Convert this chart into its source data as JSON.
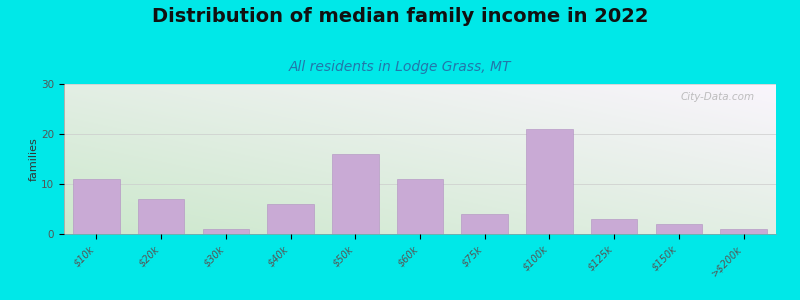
{
  "title": "Distribution of median family income in 2022",
  "subtitle": "All residents in Lodge Grass, MT",
  "ylabel": "families",
  "categories": [
    "$10k",
    "$20k",
    "$30k",
    "$40k",
    "$50k",
    "$60k",
    "$75k",
    "$100k",
    "$125k",
    "$150k",
    ">$200k"
  ],
  "values": [
    11,
    7,
    1,
    6,
    16,
    11,
    4,
    21,
    3,
    2,
    1
  ],
  "bar_color": "#c9aad5",
  "bar_edge_color": "#b090c0",
  "bg_color_topleft": "#cce8cc",
  "bg_color_bottomright": "#f8f4fc",
  "outer_bg": "#00e8e8",
  "ylim": [
    0,
    30
  ],
  "yticks": [
    0,
    10,
    20,
    30
  ],
  "title_fontsize": 14,
  "subtitle_fontsize": 10,
  "ylabel_fontsize": 8,
  "tick_fontsize": 7,
  "watermark_text": "City-Data.com"
}
